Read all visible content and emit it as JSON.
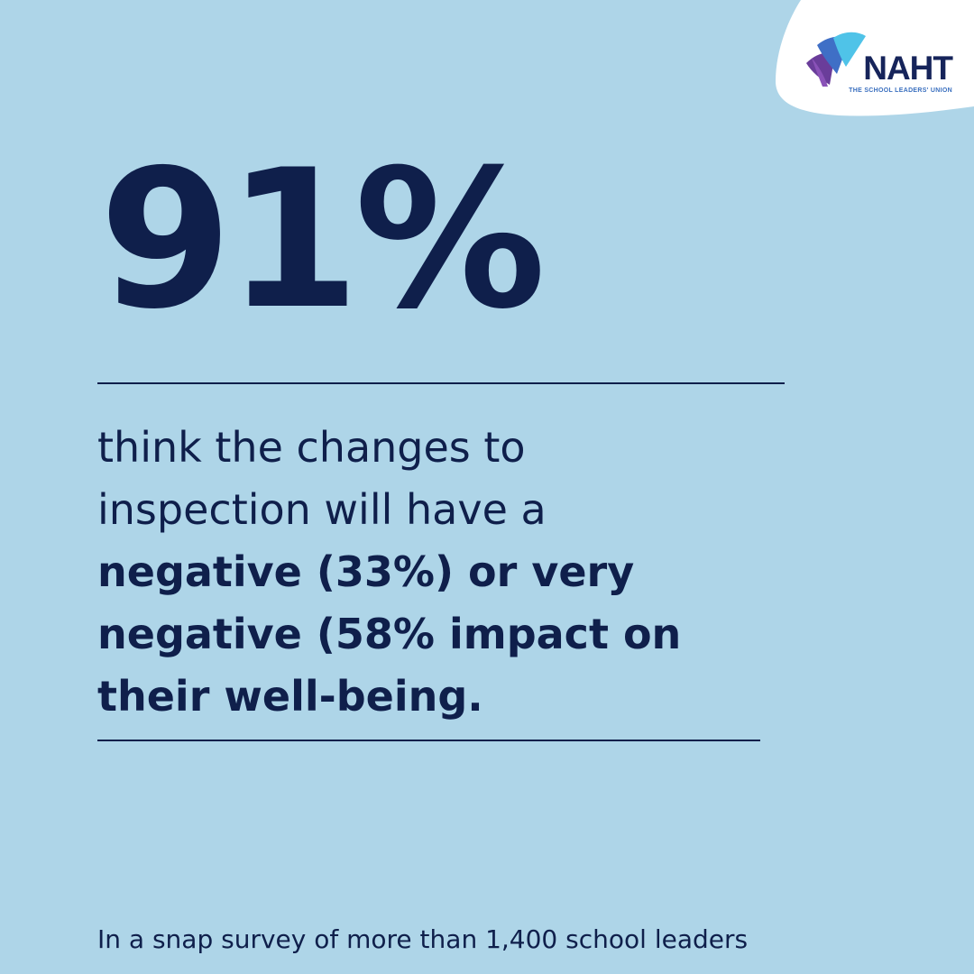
{
  "brand": {
    "logo_text": "NAHT",
    "tagline": "THE SCHOOL LEADERS' UNION",
    "colors": {
      "background": "#aed5e8",
      "navy": "#0f1f4b",
      "tab": "#ffffff",
      "logo_purple": "#6a3d9a",
      "logo_blue": "#2f8fd6",
      "logo_cyan": "#4fc3e8"
    }
  },
  "stat": {
    "value": "91%"
  },
  "statement": {
    "line1": "think the changes to",
    "line2": "inspection will have a",
    "line3": "negative (33%) or very",
    "line4": "negative (58% impact on",
    "line5": "their well-being."
  },
  "footnote": "In a snap survey of more than 1,400 school leaders"
}
